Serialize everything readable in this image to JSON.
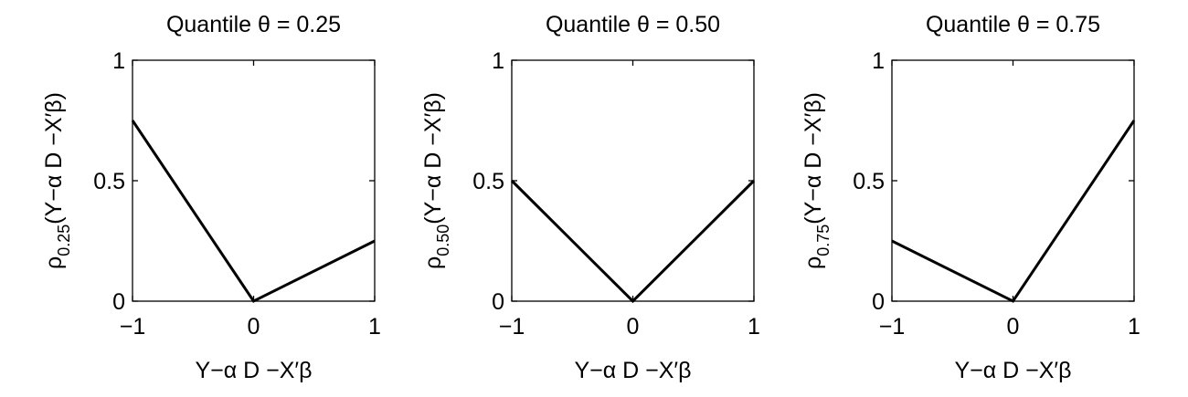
{
  "chart_data": [
    {
      "type": "line",
      "title": "Quantile θ = 0.25",
      "xlabel": "Y−α D −X′β",
      "ylabel": "ρ",
      "ylabel_sub": "0.25",
      "ylabel_rest": "(Y−α D −X′β)",
      "xlim": [
        -1,
        1
      ],
      "ylim": [
        0,
        1
      ],
      "xticks": [
        -1,
        0,
        1
      ],
      "xtick_labels": [
        "−1",
        "0",
        "1"
      ],
      "yticks": [
        0,
        0.5,
        1
      ],
      "ytick_labels": [
        "0",
        "0.5",
        "1"
      ],
      "grid": false,
      "series": [
        {
          "x": [
            -1,
            0,
            1
          ],
          "y": [
            0.75,
            0,
            0.25
          ],
          "color": "#000000"
        }
      ]
    },
    {
      "type": "line",
      "title": "Quantile θ = 0.50",
      "xlabel": "Y−α D −X′β",
      "ylabel": "ρ",
      "ylabel_sub": "0.50",
      "ylabel_rest": "(Y−α D −X′β)",
      "xlim": [
        -1,
        1
      ],
      "ylim": [
        0,
        1
      ],
      "xticks": [
        -1,
        0,
        1
      ],
      "xtick_labels": [
        "−1",
        "0",
        "1"
      ],
      "yticks": [
        0,
        0.5,
        1
      ],
      "ytick_labels": [
        "0",
        "0.5",
        "1"
      ],
      "grid": false,
      "series": [
        {
          "x": [
            -1,
            0,
            1
          ],
          "y": [
            0.5,
            0,
            0.5
          ],
          "color": "#000000"
        }
      ]
    },
    {
      "type": "line",
      "title": "Quantile θ = 0.75",
      "xlabel": "Y−α D −X′β",
      "ylabel": "ρ",
      "ylabel_sub": "0.75",
      "ylabel_rest": "(Y−α D −X′β)",
      "xlim": [
        -1,
        1
      ],
      "ylim": [
        0,
        1
      ],
      "xticks": [
        -1,
        0,
        1
      ],
      "xtick_labels": [
        "−1",
        "0",
        "1"
      ],
      "yticks": [
        0,
        0.5,
        1
      ],
      "ytick_labels": [
        "0",
        "0.5",
        "1"
      ],
      "grid": false,
      "series": [
        {
          "x": [
            -1,
            0,
            1
          ],
          "y": [
            0.25,
            0,
            0.75
          ],
          "color": "#000000"
        }
      ]
    }
  ]
}
